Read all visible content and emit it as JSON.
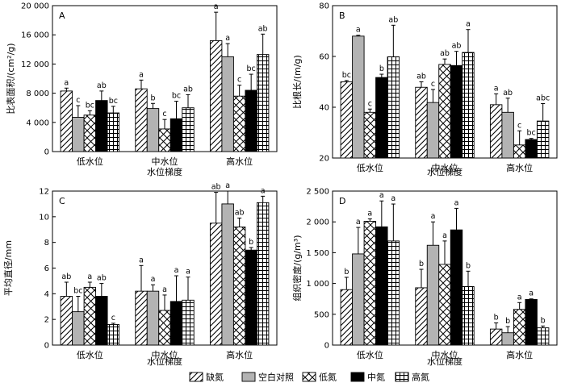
{
  "legend": {
    "items": [
      {
        "name": "缺氮",
        "pattern": "diag"
      },
      {
        "name": "空白对照",
        "pattern": "gray"
      },
      {
        "name": "低氮",
        "pattern": "cross"
      },
      {
        "name": "中氮",
        "pattern": "black"
      },
      {
        "name": "高氮",
        "pattern": "grid"
      }
    ]
  },
  "colors": {
    "gray_fill": "#b3b3b3",
    "black_fill": "#000000",
    "axis": "#000000"
  },
  "chart_data": [
    {
      "type": "bar",
      "panel": "A",
      "categories": [
        "低水位",
        "中水位",
        "高水位"
      ],
      "xlabel": "水位梯度",
      "ylabel": "比表面积/(cm²/g)",
      "ylim": [
        0,
        20000
      ],
      "yticks": [
        "0",
        "4 000",
        "8 000",
        "12 000",
        "16 000",
        "20 000"
      ],
      "series": [
        {
          "name": "缺氮",
          "values": [
            8300,
            8600,
            15200
          ],
          "errors": [
            400,
            1200,
            3900
          ],
          "letters": [
            "a",
            "a",
            "a"
          ]
        },
        {
          "name": "空白对照",
          "values": [
            4700,
            5900,
            13000
          ],
          "errors": [
            1600,
            700,
            1800
          ],
          "letters": [
            "c",
            "b",
            "a"
          ]
        },
        {
          "name": "低氮",
          "values": [
            5000,
            3100,
            7600
          ],
          "errors": [
            600,
            1300,
            1500
          ],
          "letters": [
            "bc",
            "c",
            "c"
          ]
        },
        {
          "name": "中氮",
          "values": [
            7000,
            4500,
            8400
          ],
          "errors": [
            1300,
            2400,
            2200
          ],
          "letters": [
            "ab",
            "bc",
            "bc"
          ]
        },
        {
          "name": "高氮",
          "values": [
            5300,
            6000,
            13300
          ],
          "errors": [
            900,
            1800,
            2800
          ],
          "letters": [
            "bc",
            "ab",
            "ab"
          ]
        }
      ]
    },
    {
      "type": "bar",
      "panel": "B",
      "categories": [
        "低水位",
        "中水位",
        "高水位"
      ],
      "xlabel": "水位梯度",
      "ylabel": "比根长/(m/g)",
      "ylim": [
        20,
        90
      ],
      "yticks": [
        "20",
        "40",
        "60",
        "80"
      ],
      "series": [
        {
          "name": "缺氮",
          "values": [
            55,
            52.5,
            44.5
          ],
          "errors": [
            0.6,
            2.5,
            5
          ],
          "letters": [
            "bc",
            "ab",
            "a"
          ]
        },
        {
          "name": "空白对照",
          "values": [
            76,
            45.5,
            41
          ],
          "errors": [
            0.4,
            6,
            6.5
          ],
          "letters": [
            "a",
            "c",
            "ab"
          ]
        },
        {
          "name": "低氮",
          "values": [
            41,
            63,
            26
          ],
          "errors": [
            1.5,
            2.5,
            6.5
          ],
          "letters": [
            "c",
            "ab",
            "c"
          ]
        },
        {
          "name": "中氮",
          "values": [
            57,
            62.5,
            28.5
          ],
          "errors": [
            1.5,
            6.5,
            0.5
          ],
          "letters": [
            "b",
            "ab",
            "bc"
          ]
        },
        {
          "name": "高氮",
          "values": [
            66.5,
            68.5,
            37
          ],
          "errors": [
            14.5,
            10.5,
            8
          ],
          "letters": [
            "ab",
            "a",
            "abc"
          ]
        }
      ]
    },
    {
      "type": "bar",
      "panel": "C",
      "categories": [
        "低水位",
        "中水位",
        "高水位"
      ],
      "xlabel": "水位梯度",
      "ylabel": "平均直径/mm",
      "ylim": [
        0,
        12
      ],
      "yticks": [
        "0",
        "2",
        "4",
        "6",
        "8",
        "10",
        "12"
      ],
      "series": [
        {
          "name": "缺氮",
          "values": [
            3.8,
            4.2,
            9.5
          ],
          "errors": [
            1.1,
            2.0,
            2.4
          ],
          "letters": [
            "ab",
            "a",
            "ab"
          ]
        },
        {
          "name": "空白对照",
          "values": [
            2.6,
            4.2,
            11.0
          ],
          "errors": [
            1.2,
            0.5,
            1.0
          ],
          "letters": [
            "bc",
            "a",
            "a"
          ]
        },
        {
          "name": "低氮",
          "values": [
            4.5,
            2.7,
            9.2
          ],
          "errors": [
            0.4,
            1.2,
            0.7
          ],
          "letters": [
            "a",
            "a",
            "ab"
          ]
        },
        {
          "name": "中氮",
          "values": [
            3.8,
            3.4,
            7.4
          ],
          "errors": [
            1.0,
            2.0,
            0.2
          ],
          "letters": [
            "ab",
            "a",
            "b"
          ]
        },
        {
          "name": "高氮",
          "values": [
            1.6,
            3.5,
            11.1
          ],
          "errors": [
            0.1,
            1.8,
            0.5
          ],
          "letters": [
            "c",
            "a",
            "a"
          ]
        }
      ]
    },
    {
      "type": "bar",
      "panel": "D",
      "categories": [
        "低水位",
        "中水位",
        "高水位"
      ],
      "xlabel": "水位梯度",
      "ylabel": "组织密度/(g/m³)",
      "ylim": [
        0,
        2500
      ],
      "yticks": [
        "0",
        "500",
        "1 000",
        "1 500",
        "2 000",
        "2 500"
      ],
      "series": [
        {
          "name": "缺氮",
          "values": [
            900,
            930,
            260
          ],
          "errors": [
            200,
            300,
            100
          ],
          "letters": [
            "b",
            "b",
            "b"
          ]
        },
        {
          "name": "空白对照",
          "values": [
            1480,
            1620,
            200
          ],
          "errors": [
            430,
            380,
            100
          ],
          "letters": [
            "a",
            "a",
            "b"
          ]
        },
        {
          "name": "低氮",
          "values": [
            2010,
            1310,
            580
          ],
          "errors": [
            40,
            380,
            110
          ],
          "letters": [
            "a",
            "a",
            "a"
          ]
        },
        {
          "name": "中氮",
          "values": [
            1920,
            1870,
            740
          ],
          "errors": [
            420,
            350,
            10
          ],
          "letters": [
            "a",
            "a",
            "a"
          ]
        },
        {
          "name": "高氮",
          "values": [
            1690,
            950,
            280
          ],
          "errors": [
            600,
            250,
            30
          ],
          "letters": [
            "a",
            "b",
            "b"
          ]
        }
      ]
    }
  ]
}
